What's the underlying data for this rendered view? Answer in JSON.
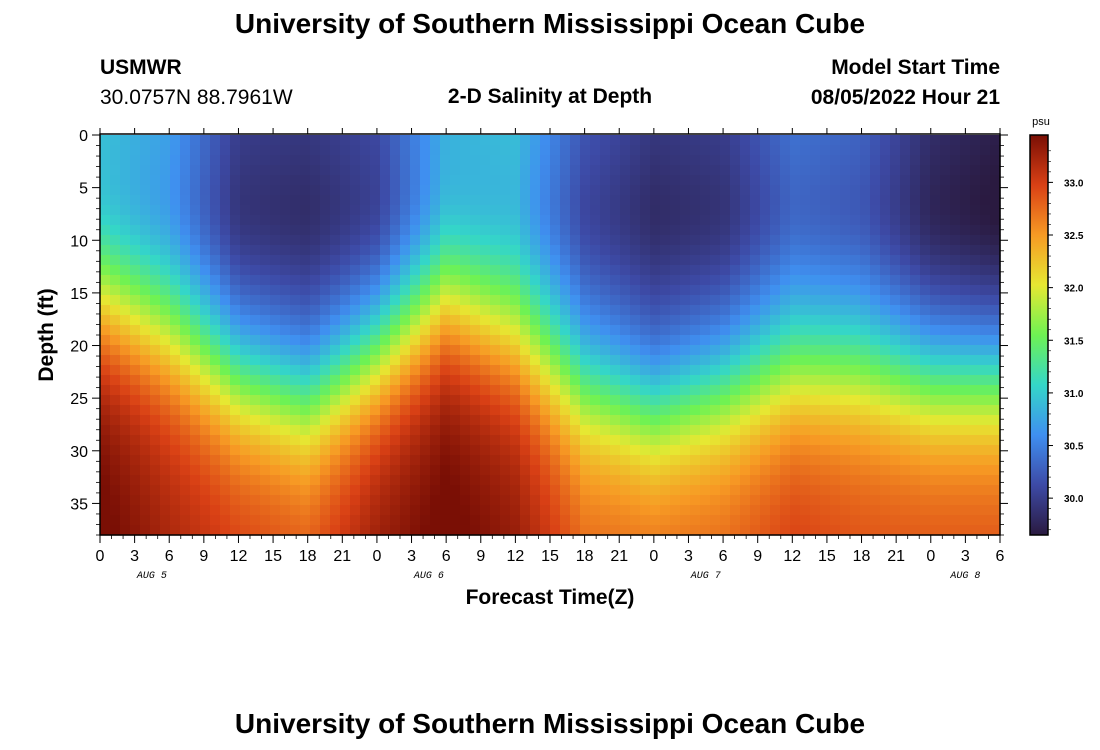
{
  "page": {
    "title_top": "University of Southern Mississippi Ocean Cube",
    "title_bottom": "University of Southern Mississippi Ocean Cube",
    "station": "USMWR",
    "coords": "30.0757N  88.7961W",
    "plot_title": "2-D Salinity at Depth",
    "model_start_label": "Model Start Time",
    "model_start_value": "08/05/2022 Hour 21"
  },
  "colors": {
    "stops": [
      "#2a1a40",
      "#3d4aa6",
      "#3f8ff0",
      "#34d6c8",
      "#6ef253",
      "#e6e832",
      "#f79a24",
      "#d94015",
      "#7a0f05"
    ]
  },
  "chart_data": {
    "type": "heatmap",
    "title": "2-D Salinity at Depth",
    "xlabel": "Forecast Time(Z)",
    "ylabel": "Depth (ft)",
    "x_tick_labels": [
      "0",
      "3",
      "6",
      "9",
      "12",
      "15",
      "18",
      "21",
      "0",
      "3",
      "6",
      "9",
      "12",
      "15",
      "18",
      "21",
      "0",
      "3",
      "6",
      "9",
      "12",
      "15",
      "18",
      "21",
      "0",
      "3",
      "6"
    ],
    "day_labels": [
      {
        "label": "AUG 5",
        "tick_index": 1.5
      },
      {
        "label": "AUG 6",
        "tick_index": 9.5
      },
      {
        "label": "AUG 7",
        "tick_index": 17.5
      },
      {
        "label": "AUG 8",
        "tick_index": 25
      }
    ],
    "x_range_hours": [
      0,
      78
    ],
    "y_range_ft": [
      0,
      38
    ],
    "y_ticks": [
      0,
      5,
      10,
      15,
      20,
      25,
      30,
      35
    ],
    "colorbar": {
      "unit": "psu",
      "range": [
        29.65,
        33.45
      ],
      "ticks": [
        "30.0",
        "30.5",
        "31.0",
        "31.5",
        "32.0",
        "32.5",
        "33.0"
      ]
    },
    "salinity_profile_psu": {
      "time_hours": [
        0,
        6,
        12,
        18,
        24,
        30,
        36,
        42,
        48,
        54,
        60,
        66,
        72,
        78
      ],
      "surface": [
        30.9,
        30.7,
        30.0,
        29.95,
        30.1,
        30.8,
        30.9,
        30.2,
        29.95,
        30.0,
        30.4,
        30.3,
        29.85,
        29.7
      ],
      "halocline_depth_ft": [
        16,
        19,
        23,
        25,
        21,
        16,
        19,
        24,
        26,
        24,
        22,
        22,
        23,
        23
      ],
      "bottom": [
        33.4,
        33.1,
        32.9,
        32.8,
        33.2,
        33.4,
        33.2,
        32.7,
        32.7,
        32.7,
        32.9,
        32.8,
        32.8,
        32.8
      ]
    }
  }
}
